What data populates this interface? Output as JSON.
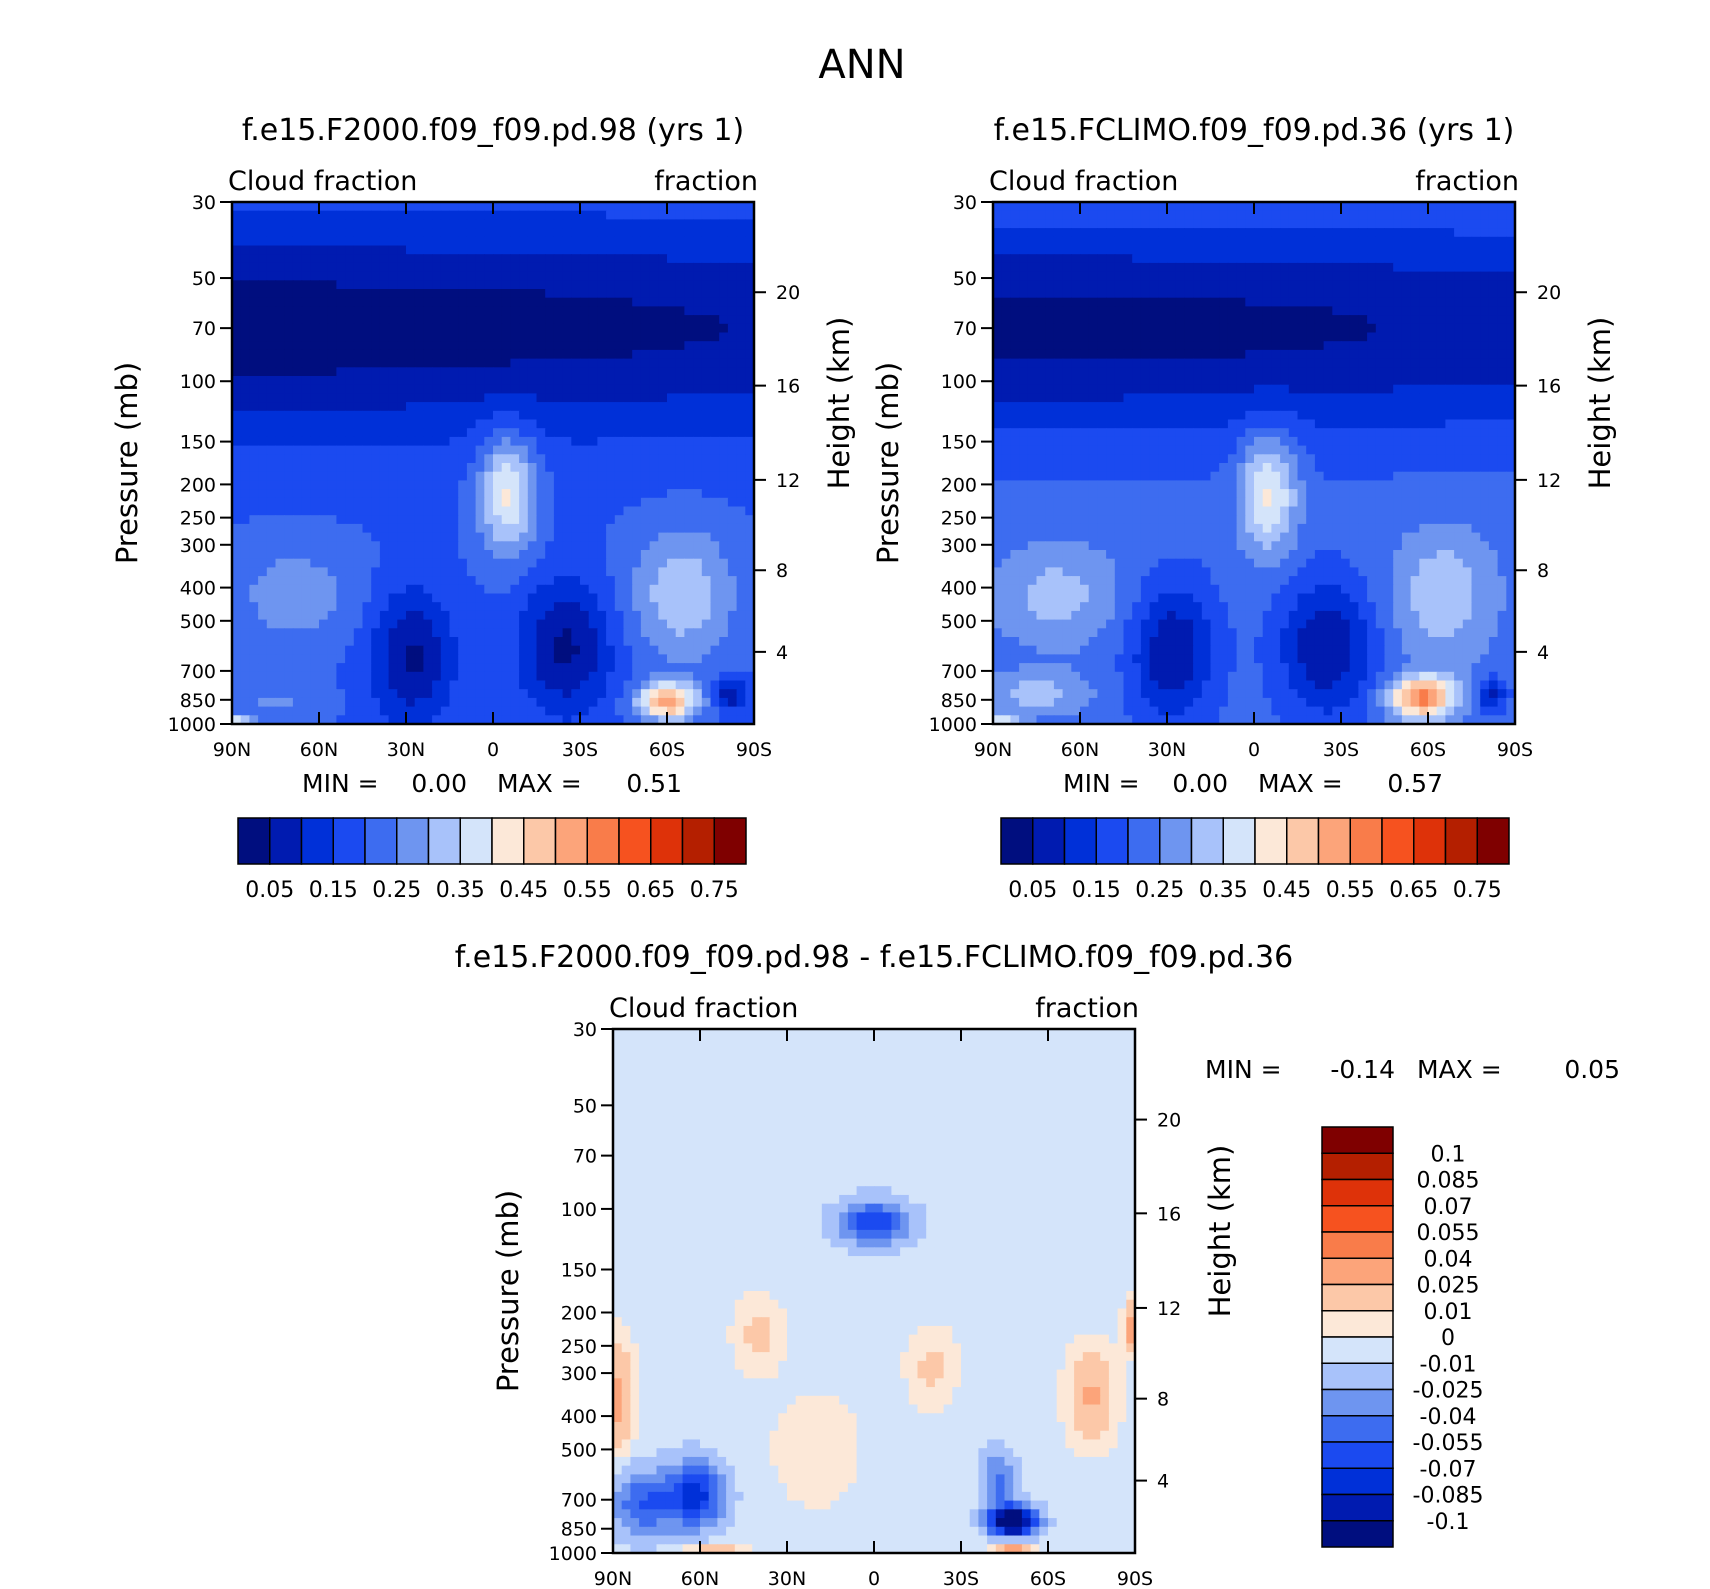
{
  "figure_title": "ANN",
  "pressure_ticks": [
    {
      "p": 30,
      "label": "30"
    },
    {
      "p": 50,
      "label": "50"
    },
    {
      "p": 70,
      "label": "70"
    },
    {
      "p": 100,
      "label": "100"
    },
    {
      "p": 150,
      "label": "150"
    },
    {
      "p": 200,
      "label": "200"
    },
    {
      "p": 250,
      "label": "250"
    },
    {
      "p": 300,
      "label": "300"
    },
    {
      "p": 400,
      "label": "400"
    },
    {
      "p": 500,
      "label": "500"
    },
    {
      "p": 700,
      "label": "700"
    },
    {
      "p": 850,
      "label": "850"
    },
    {
      "p": 1000,
      "label": "1000"
    }
  ],
  "height_ticks": [
    {
      "km": 20,
      "p": 55,
      "label": "20"
    },
    {
      "km": 16,
      "p": 103,
      "label": "16"
    },
    {
      "km": 12,
      "p": 194,
      "label": "12"
    },
    {
      "km": 8,
      "p": 356,
      "label": "8"
    },
    {
      "km": 4,
      "p": 616,
      "label": "4"
    }
  ],
  "lat_ticks": [
    {
      "lat": 90,
      "label": "90N"
    },
    {
      "lat": 60,
      "label": "60N"
    },
    {
      "lat": 30,
      "label": "30N"
    },
    {
      "lat": 0,
      "label": "0"
    },
    {
      "lat": -30,
      "label": "30S"
    },
    {
      "lat": -60,
      "label": "60S"
    },
    {
      "lat": -90,
      "label": "90S"
    }
  ],
  "colors": {
    "abs": [
      "#000e7f",
      "#001bb0",
      "#0030d8",
      "#1b4af0",
      "#3d6cf0",
      "#6e95f0",
      "#a8c2fa",
      "#d4e4fa",
      "#fce8d8",
      "#fcc8a8",
      "#fca47a",
      "#f97c4a",
      "#f6521f",
      "#de3209",
      "#b41f00",
      "#7f0000"
    ],
    "diff": [
      "#000e7f",
      "#001bb0",
      "#0030d8",
      "#1b4af0",
      "#3d6cf0",
      "#6e95f0",
      "#a8c2fa",
      "#d4e4fa",
      "#fce8d8",
      "#fcc8a8",
      "#fca47a",
      "#f97c4a",
      "#f6521f",
      "#de3209",
      "#b41f00",
      "#7f0000"
    ]
  },
  "chart_data": [
    {
      "type": "heatmap",
      "title": "f.e15.F2000.f09_f09.pd.98 (yrs 1)",
      "left_label": "Cloud fraction",
      "right_label": "fraction",
      "ylabel": "Pressure (mb)",
      "y2label": "Height (km)",
      "xlim": [
        90,
        -90
      ],
      "ylim": [
        1000,
        30
      ],
      "y_scale": "log",
      "min_label": "MIN =",
      "min_value": "0.00",
      "max_label": "MAX =",
      "max_value": "0.51",
      "colorbar_labels": [
        "0.05",
        "0.15",
        "0.25",
        "0.35",
        "0.45",
        "0.55",
        "0.65",
        "0.75"
      ],
      "field": {
        "background": 0.2,
        "features": [
          {
            "lat": 90,
            "p": 70,
            "dlat": 400,
            "dp": 0.7,
            "amp": -0.18
          },
          {
            "lat": -5,
            "p": 210,
            "dlat": 10,
            "dp": 0.4,
            "amp": 0.22
          },
          {
            "lat": 68,
            "p": 420,
            "dlat": 22,
            "dp": 0.35,
            "amp": 0.08
          },
          {
            "lat": -65,
            "p": 420,
            "dlat": 18,
            "dp": 0.45,
            "amp": 0.14
          },
          {
            "lat": -60,
            "p": 860,
            "dlat": 10,
            "dp": 0.12,
            "amp": 0.33
          },
          {
            "lat": 28,
            "p": 640,
            "dlat": 14,
            "dp": 0.45,
            "amp": -0.16
          },
          {
            "lat": -25,
            "p": 600,
            "dlat": 16,
            "dp": 0.45,
            "amp": -0.16
          },
          {
            "lat": -82,
            "p": 820,
            "dlat": 5,
            "dp": 0.1,
            "amp": -0.15
          },
          {
            "lat": 75,
            "p": 860,
            "dlat": 15,
            "dp": 0.1,
            "amp": 0.06
          },
          {
            "lat": 88,
            "p": 990,
            "dlat": 6,
            "dp": 0.05,
            "amp": 0.18
          }
        ]
      }
    },
    {
      "type": "heatmap",
      "title": "f.e15.FCLIMO.f09_f09.pd.36 (yrs 1)",
      "left_label": "Cloud fraction",
      "right_label": "fraction",
      "ylabel": "Pressure (mb)",
      "y2label": "Height (km)",
      "xlim": [
        90,
        -90
      ],
      "ylim": [
        1000,
        30
      ],
      "y_scale": "log",
      "min_label": "MIN =",
      "min_value": "0.00",
      "max_label": "MAX =",
      "max_value": "0.57",
      "colorbar_labels": [
        "0.05",
        "0.15",
        "0.25",
        "0.35",
        "0.45",
        "0.55",
        "0.65",
        "0.75"
      ],
      "field": {
        "background": 0.22,
        "features": [
          {
            "lat": 90,
            "p": 70,
            "dlat": 400,
            "dp": 0.7,
            "amp": -0.19
          },
          {
            "lat": -5,
            "p": 210,
            "dlat": 10,
            "dp": 0.4,
            "amp": 0.2
          },
          {
            "lat": 68,
            "p": 420,
            "dlat": 22,
            "dp": 0.35,
            "amp": 0.1
          },
          {
            "lat": -65,
            "p": 420,
            "dlat": 18,
            "dp": 0.45,
            "amp": 0.12
          },
          {
            "lat": -58,
            "p": 840,
            "dlat": 11,
            "dp": 0.14,
            "amp": 0.35
          },
          {
            "lat": 28,
            "p": 620,
            "dlat": 14,
            "dp": 0.45,
            "amp": -0.17
          },
          {
            "lat": -25,
            "p": 600,
            "dlat": 16,
            "dp": 0.45,
            "amp": -0.17
          },
          {
            "lat": -82,
            "p": 820,
            "dlat": 5,
            "dp": 0.1,
            "amp": -0.15
          },
          {
            "lat": 75,
            "p": 820,
            "dlat": 18,
            "dp": 0.15,
            "amp": 0.1
          },
          {
            "lat": 88,
            "p": 990,
            "dlat": 6,
            "dp": 0.05,
            "amp": 0.18
          }
        ]
      }
    },
    {
      "type": "heatmap",
      "title": "f.e15.F2000.f09_f09.pd.98 - f.e15.FCLIMO.f09_f09.pd.36",
      "left_label": "Cloud fraction",
      "right_label": "fraction",
      "ylabel": "Pressure (mb)",
      "y2label": "Height (km)",
      "xlim": [
        90,
        -90
      ],
      "ylim": [
        1000,
        30
      ],
      "y_scale": "log",
      "min_label": "MIN =",
      "min_value": "-0.14",
      "max_label": "MAX =",
      "max_value": "0.05",
      "colorbar_labels": [
        "0.1",
        "0.085",
        "0.07",
        "0.055",
        "0.04",
        "0.025",
        "0.01",
        "0",
        "-0.01",
        "-0.025",
        "-0.04",
        "-0.055",
        "-0.07",
        "-0.085",
        "-0.1"
      ],
      "field": {
        "background": -0.004,
        "features": [
          {
            "lat": -48,
            "p": 810,
            "dlat": 8,
            "dp": 0.1,
            "amp": -0.13
          },
          {
            "lat": -43,
            "p": 620,
            "dlat": 6,
            "dp": 0.2,
            "amp": -0.04
          },
          {
            "lat": 62,
            "p": 680,
            "dlat": 10,
            "dp": 0.22,
            "amp": -0.075
          },
          {
            "lat": 80,
            "p": 720,
            "dlat": 10,
            "dp": 0.22,
            "amp": -0.05
          },
          {
            "lat": 0,
            "p": 110,
            "dlat": 12,
            "dp": 0.15,
            "amp": -0.065
          },
          {
            "lat": 88,
            "p": 350,
            "dlat": 5,
            "dp": 0.35,
            "amp": 0.035
          },
          {
            "lat": -75,
            "p": 350,
            "dlat": 8,
            "dp": 0.3,
            "amp": 0.032
          },
          {
            "lat": -89,
            "p": 220,
            "dlat": 3,
            "dp": 0.15,
            "amp": 0.04
          },
          {
            "lat": -48,
            "p": 975,
            "dlat": 6,
            "dp": 0.05,
            "amp": 0.045
          },
          {
            "lat": 55,
            "p": 975,
            "dlat": 10,
            "dp": 0.05,
            "amp": 0.025
          },
          {
            "lat": 40,
            "p": 230,
            "dlat": 8,
            "dp": 0.25,
            "amp": 0.018
          },
          {
            "lat": -20,
            "p": 290,
            "dlat": 8,
            "dp": 0.25,
            "amp": 0.018
          },
          {
            "lat": 20,
            "p": 500,
            "dlat": 16,
            "dp": 0.4,
            "amp": 0.01
          }
        ]
      }
    }
  ]
}
